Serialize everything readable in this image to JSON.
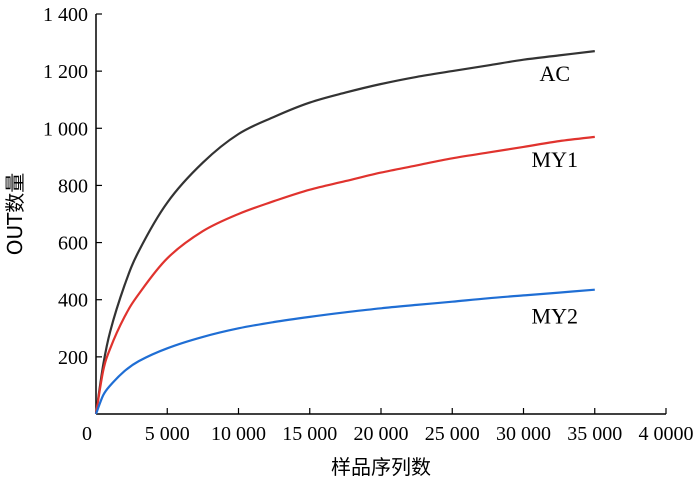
{
  "chart_data": {
    "type": "line",
    "title": "",
    "xlabel": "样品序列数",
    "ylabel": "OUT数量",
    "xlim": [
      0,
      40000
    ],
    "ylim": [
      0,
      1400
    ],
    "x_ticks": [
      0,
      5000,
      10000,
      15000,
      20000,
      25000,
      30000,
      35000,
      40000
    ],
    "x_tick_labels": [
      "0",
      "5 000",
      "10 000",
      "15 000",
      "20 000",
      "25 000",
      "30 000",
      "35 000",
      "4 0000"
    ],
    "y_ticks": [
      200,
      400,
      600,
      800,
      1000,
      1200,
      1400
    ],
    "y_tick_labels": [
      "200",
      "400",
      "600",
      "800",
      "1 000",
      "1 200",
      "1 400"
    ],
    "grid": false,
    "legend": "none",
    "series": [
      {
        "name": "AC",
        "color": "#333333",
        "x": [
          0,
          500,
          1000,
          2000,
          3000,
          5000,
          7500,
          10000,
          12500,
          15000,
          17500,
          20000,
          22500,
          25000,
          27500,
          30000,
          32500,
          35000
        ],
        "y": [
          0,
          170,
          290,
          450,
          570,
          740,
          880,
          980,
          1040,
          1090,
          1125,
          1155,
          1180,
          1200,
          1220,
          1240,
          1255,
          1270
        ]
      },
      {
        "name": "MY1",
        "color": "#e0332e",
        "x": [
          0,
          500,
          1000,
          2000,
          3000,
          5000,
          7500,
          10000,
          12500,
          15000,
          17500,
          20000,
          22500,
          25000,
          27500,
          30000,
          32500,
          35000
        ],
        "y": [
          0,
          150,
          230,
          340,
          420,
          545,
          640,
          700,
          745,
          785,
          815,
          845,
          870,
          895,
          915,
          935,
          955,
          970
        ]
      },
      {
        "name": "MY2",
        "color": "#1f6ed4",
        "x": [
          0,
          500,
          1000,
          2000,
          3000,
          5000,
          7500,
          10000,
          12500,
          15000,
          17500,
          20000,
          22500,
          25000,
          27500,
          30000,
          32500,
          35000
        ],
        "y": [
          0,
          65,
          100,
          150,
          185,
          230,
          270,
          300,
          322,
          340,
          356,
          370,
          382,
          393,
          405,
          415,
          425,
          435
        ]
      }
    ]
  }
}
